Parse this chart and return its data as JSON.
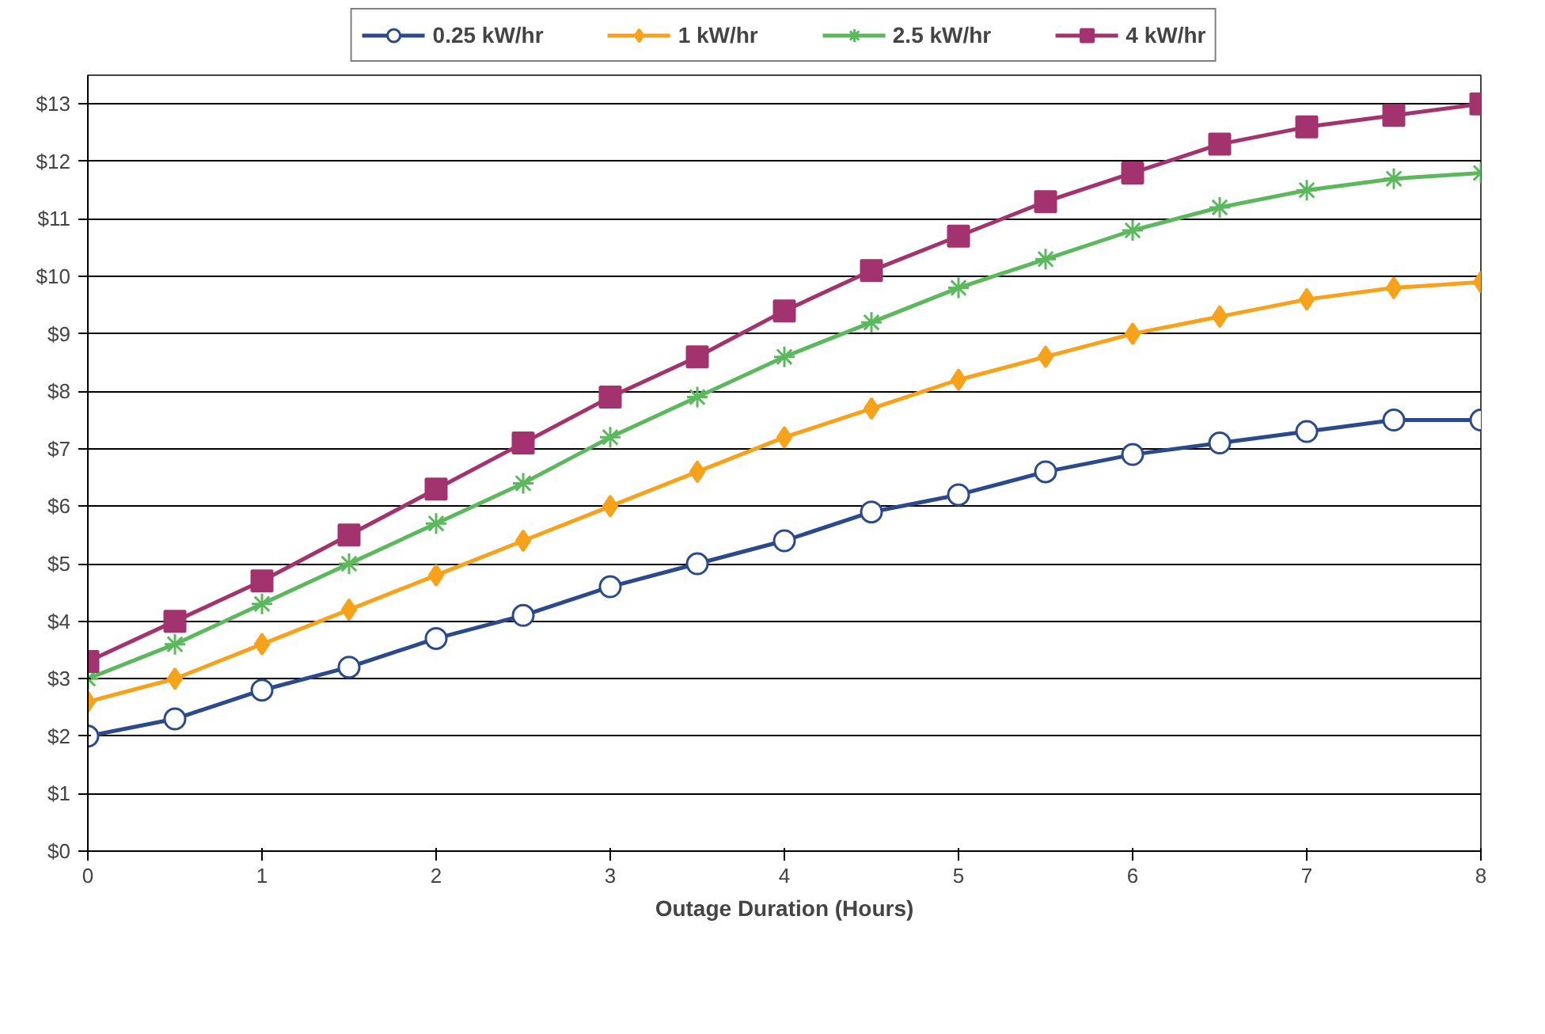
{
  "chart_data": {
    "type": "line",
    "xlabel": "Outage Duration (Hours)",
    "x": [
      0,
      0.5,
      1,
      1.5,
      2,
      2.5,
      3,
      3.5,
      4,
      4.5,
      5,
      5.5,
      6,
      6.5,
      7,
      7.5,
      8
    ],
    "series": [
      {
        "name": "0.25 kW/hr",
        "color": "#2b4a8b",
        "marker": "circle",
        "values": [
          2.0,
          2.3,
          2.8,
          3.2,
          3.7,
          4.1,
          4.6,
          5.0,
          5.4,
          5.9,
          6.2,
          6.6,
          6.9,
          7.1,
          7.3,
          7.5,
          7.5
        ]
      },
      {
        "name": "1 kW/hr",
        "color": "#f7a21b",
        "marker": "diamond",
        "values": [
          2.6,
          3.0,
          3.6,
          4.2,
          4.8,
          5.4,
          6.0,
          6.6,
          7.2,
          7.7,
          8.2,
          8.6,
          9.0,
          9.3,
          9.6,
          9.8,
          9.9
        ]
      },
      {
        "name": "2.5 kW/hr",
        "color": "#5cb85c",
        "marker": "cross",
        "values": [
          3.0,
          3.6,
          4.3,
          5.0,
          5.7,
          6.4,
          7.2,
          7.9,
          8.6,
          9.2,
          9.8,
          10.3,
          10.8,
          11.2,
          11.5,
          11.7,
          11.8
        ]
      },
      {
        "name": "4 kW/hr",
        "color": "#a3336e",
        "marker": "square",
        "values": [
          3.3,
          4.0,
          4.7,
          5.5,
          6.3,
          7.1,
          7.9,
          8.6,
          9.4,
          10.1,
          10.7,
          11.3,
          11.8,
          12.3,
          12.6,
          12.8,
          13.0
        ]
      }
    ],
    "xlim": [
      0,
      8
    ],
    "xticks": [
      0,
      1,
      2,
      3,
      4,
      5,
      6,
      7,
      8
    ],
    "ylim": [
      0,
      13.5
    ],
    "yticks": [
      {
        "value": 0,
        "label": "$0"
      },
      {
        "value": 1,
        "label": "$1"
      },
      {
        "value": 2,
        "label": "$2"
      },
      {
        "value": 3,
        "label": "$3"
      },
      {
        "value": 4,
        "label": "$4"
      },
      {
        "value": 5,
        "label": "$5"
      },
      {
        "value": 6,
        "label": "$6"
      },
      {
        "value": 7,
        "label": "$7"
      },
      {
        "value": 8,
        "label": "$8"
      },
      {
        "value": 9,
        "label": "$9"
      },
      {
        "value": 10,
        "label": "$10"
      },
      {
        "value": 11,
        "label": "$11"
      },
      {
        "value": 12,
        "label": "$12"
      },
      {
        "value": 13,
        "label": "$13"
      }
    ],
    "grid": "y",
    "legend": "top",
    "line_style": "solid"
  }
}
